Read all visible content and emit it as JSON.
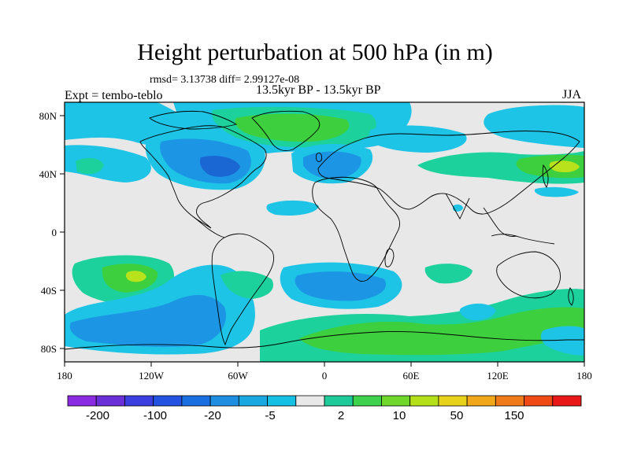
{
  "title": "Height perturbation at 500 hPa (in m)",
  "stats": "rmsd= 3.13738 diff= 2.99127e-08",
  "subtitle_left": "Expt = tembo-teblo",
  "subtitle_center": "13.5kyr BP - 13.5kyr BP",
  "subtitle_right": "JJA",
  "lat_labels": [
    "80N",
    "40N",
    "0",
    "40S",
    "80S"
  ],
  "lon_labels": [
    "180",
    "120W",
    "60W",
    "0",
    "60E",
    "120E",
    "180"
  ],
  "colorbar": {
    "colors": [
      "#8a2be2",
      "#6a2fd6",
      "#3c3fe0",
      "#2352e0",
      "#1a6fe0",
      "#1e8fe0",
      "#19a9e0",
      "#15c0e2",
      "#e8e8e8",
      "#1ec99a",
      "#3ed24c",
      "#6fd62a",
      "#b4e01a",
      "#e8d21a",
      "#f0a81a",
      "#ef7a18",
      "#ef4a14",
      "#e81818"
    ],
    "labels": [
      "-200",
      "-100",
      "-20",
      "-5",
      "2",
      "10",
      "50",
      "150"
    ]
  },
  "palette": {
    "neutral": "#e8e8e8",
    "light_blue": "#1ec4e6",
    "blue": "#1c96e4",
    "dark_blue": "#1a66d2",
    "teal": "#1cd19c",
    "green": "#3ecf3e",
    "yellow_green": "#b8e21c"
  }
}
